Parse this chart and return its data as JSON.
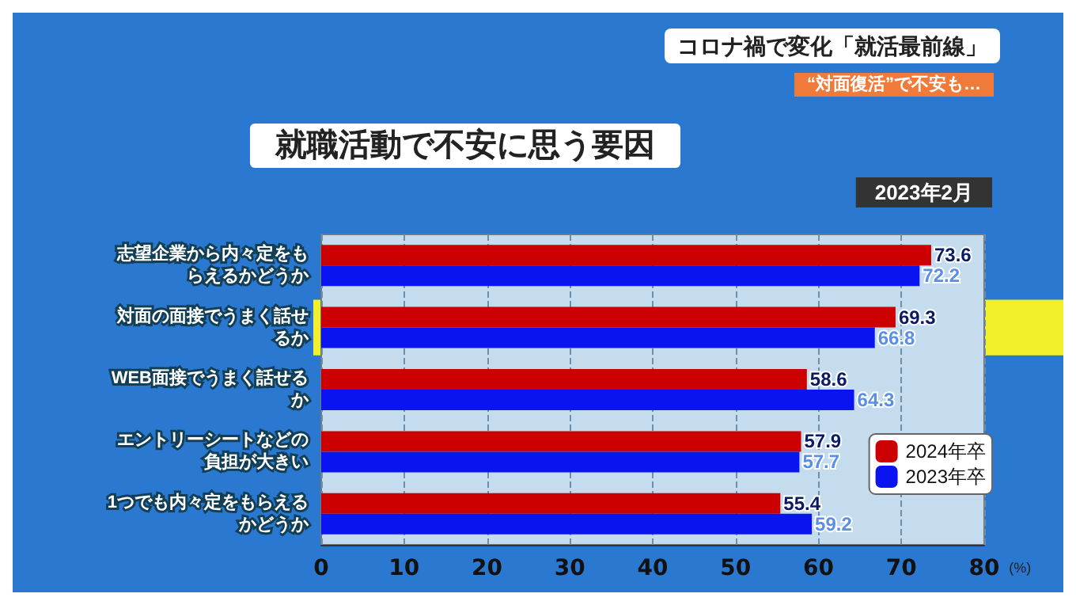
{
  "chart_data": {
    "type": "bar",
    "orientation": "horizontal",
    "title": "就職活動で不安に思う要因",
    "subtitle": "2023年2月",
    "annotations": [
      "コロナ禍で変化「就活最前線」",
      "“対面復活”で不安も…"
    ],
    "xlabel": "(%)",
    "categories": [
      "志望企業から内々定をもらえるかどうか",
      "対面の面接でうまく話せるか",
      "WEB面接でうまく話せるか",
      "エントリーシートなどの負担が大きい",
      "1つでも内々定をもらえるかどうか"
    ],
    "series": [
      {
        "name": "2024年卒",
        "color": "#cc0000",
        "values": [
          73.6,
          69.3,
          58.6,
          57.9,
          55.4
        ]
      },
      {
        "name": "2023年卒",
        "color": "#0a14f0",
        "values": [
          72.2,
          66.8,
          64.3,
          57.7,
          59.2
        ]
      }
    ],
    "xlim": [
      0,
      80
    ],
    "xticks": [
      0,
      10,
      20,
      30,
      40,
      50,
      60,
      70,
      80
    ],
    "bands": [
      {
        "axis": "y",
        "from": "対面の面接でうまく話せるか",
        "to": "対面の面接でうまく話せるか",
        "color": "#f2f02a"
      }
    ],
    "data_labels": true,
    "grid": "x",
    "legend": "bottom right"
  }
}
